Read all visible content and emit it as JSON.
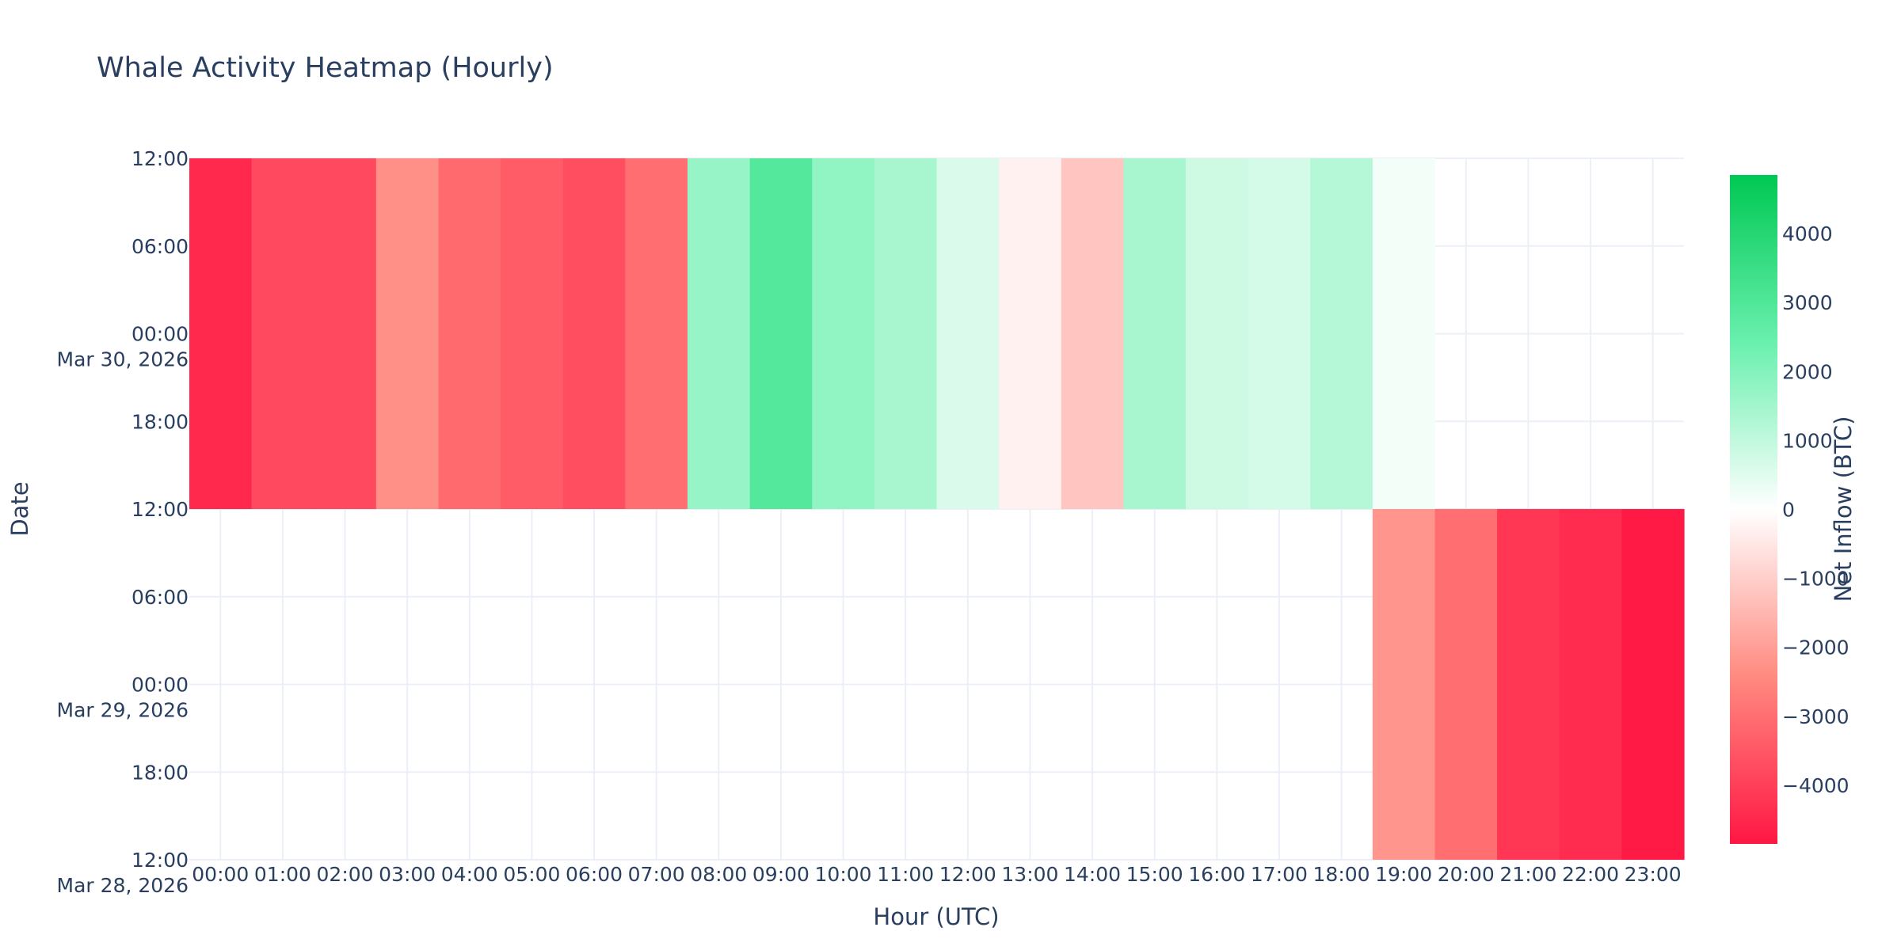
{
  "title": "Whale Activity Heatmap (Hourly)",
  "chart_data": {
    "type": "heatmap",
    "title": "Whale Activity Heatmap (Hourly)",
    "xlabel": "Hour (UTC)",
    "ylabel": "Date",
    "x": [
      "00:00",
      "01:00",
      "02:00",
      "03:00",
      "04:00",
      "05:00",
      "06:00",
      "07:00",
      "08:00",
      "09:00",
      "10:00",
      "11:00",
      "12:00",
      "13:00",
      "14:00",
      "15:00",
      "16:00",
      "17:00",
      "18:00",
      "19:00",
      "20:00",
      "21:00",
      "22:00",
      "23:00"
    ],
    "y": [
      "Mar 29, 2026",
      "Mar 30, 2026"
    ],
    "z": [
      [
        null,
        null,
        null,
        null,
        null,
        null,
        null,
        null,
        null,
        null,
        null,
        null,
        null,
        null,
        null,
        null,
        null,
        null,
        null,
        -2200,
        -3000,
        -4200,
        -4400,
        -4800
      ],
      [
        -4500,
        -3800,
        -3800,
        -2300,
        -3100,
        -3400,
        -3700,
        -3000,
        1700,
        2900,
        1800,
        1400,
        600,
        -300,
        -1200,
        1400,
        800,
        700,
        1200,
        200,
        null,
        null,
        null,
        null
      ]
    ],
    "y_ticks": [
      {
        "label": "12:00",
        "sub": "Mar 28, 2026"
      },
      {
        "label": "18:00",
        "sub": ""
      },
      {
        "label": "00:00",
        "sub": "Mar 29, 2026"
      },
      {
        "label": "06:00",
        "sub": ""
      },
      {
        "label": "12:00",
        "sub": ""
      },
      {
        "label": "18:00",
        "sub": ""
      },
      {
        "label": "00:00",
        "sub": "Mar 30, 2026"
      },
      {
        "label": "06:00",
        "sub": ""
      },
      {
        "label": "12:00",
        "sub": ""
      }
    ],
    "colorbar": {
      "title": "Net Inflow (BTC)",
      "range": [
        -4850,
        4850
      ],
      "ticks": [
        4000,
        3000,
        2000,
        1000,
        0,
        -1000,
        -2000,
        -3000,
        -4000
      ],
      "tick_labels": [
        "4000",
        "3000",
        "2000",
        "1000",
        "0",
        "−1000",
        "−2000",
        "−3000",
        "−4000"
      ],
      "colors": {
        "neg_strong": "#ff1744",
        "neg_mid": "#ff8a80",
        "zero": "#ffffff",
        "pos_mid": "#69f0ae",
        "pos_strong": "#00c853"
      }
    },
    "grid": true,
    "legend": "colorbar-right"
  }
}
